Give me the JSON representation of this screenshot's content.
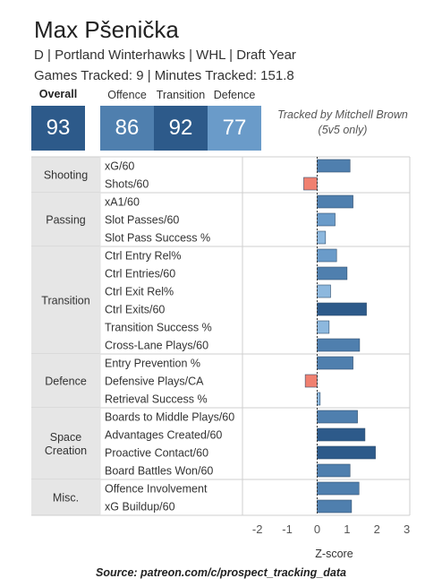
{
  "header": {
    "player_name": "Max Pšenička",
    "subtitle": "D | Portland Winterhawks | WHL | Draft Year",
    "tracking": "Games Tracked: 9 | Minutes Tracked: 151.8"
  },
  "tiles": [
    {
      "label": "Overall",
      "value": "93",
      "color": "#2d5a8a",
      "bold": true
    },
    {
      "label": "Offence",
      "value": "86",
      "color": "#4f7fae",
      "bold": false
    },
    {
      "label": "Transition",
      "value": "92",
      "color": "#2d5a8a",
      "bold": false
    },
    {
      "label": "Defence",
      "value": "77",
      "color": "#6a9bc9",
      "bold": false
    }
  ],
  "tracked_note": "Tracked by Mitchell Brown (5v5 only)",
  "source": "Source: patreon.com/c/prospect_tracking_data",
  "colors": {
    "positive_strong": "#2d5a8a",
    "positive_mid": "#4f7fae",
    "positive_light": "#6a9bc9",
    "positive_pale": "#8db8de",
    "negative": "#f08070",
    "group_bg": "#e6e6e6"
  },
  "chart_data": {
    "type": "bar",
    "orientation": "horizontal",
    "xlabel": "Z-score",
    "xlim": [
      -2.5,
      3.1
    ],
    "xticks": [
      "-2",
      "-1",
      "0",
      "1",
      "2",
      "3"
    ],
    "xtick_values": [
      -2,
      -1,
      0,
      1,
      2,
      3
    ],
    "groups": [
      {
        "name": "Shooting",
        "metrics": [
          {
            "label": "xG/60",
            "value": 1.1
          },
          {
            "label": "Shots/60",
            "value": -0.45
          }
        ]
      },
      {
        "name": "Passing",
        "metrics": [
          {
            "label": "xA1/60",
            "value": 1.2
          },
          {
            "label": "Slot Passes/60",
            "value": 0.6
          },
          {
            "label": "Slot Pass Success %",
            "value": 0.28
          }
        ]
      },
      {
        "name": "Transition",
        "metrics": [
          {
            "label": "Ctrl Entry Rel%",
            "value": 0.65
          },
          {
            "label": "Ctrl Entries/60",
            "value": 1.0
          },
          {
            "label": "Ctrl Exit Rel%",
            "value": 0.45
          },
          {
            "label": "Ctrl Exits/60",
            "value": 1.65
          },
          {
            "label": "Transition Success %",
            "value": 0.4
          },
          {
            "label": "Cross-Lane Plays/60",
            "value": 1.42
          }
        ]
      },
      {
        "name": "Defence",
        "metrics": [
          {
            "label": "Entry Prevention %",
            "value": 1.2
          },
          {
            "label": "Defensive Plays/CA",
            "value": -0.4
          },
          {
            "label": "Retrieval Success %",
            "value": 0.1
          }
        ]
      },
      {
        "name": "Space Creation",
        "metrics": [
          {
            "label": "Boards to Middle Plays/60",
            "value": 1.35
          },
          {
            "label": "Advantages Created/60",
            "value": 1.6
          },
          {
            "label": "Proactive Contact/60",
            "value": 1.95
          },
          {
            "label": "Board Battles Won/60",
            "value": 1.1
          }
        ]
      },
      {
        "name": "Misc.",
        "metrics": [
          {
            "label": "Offence Involvement",
            "value": 1.4
          },
          {
            "label": "xG Buildup/60",
            "value": 1.15
          }
        ]
      }
    ]
  }
}
